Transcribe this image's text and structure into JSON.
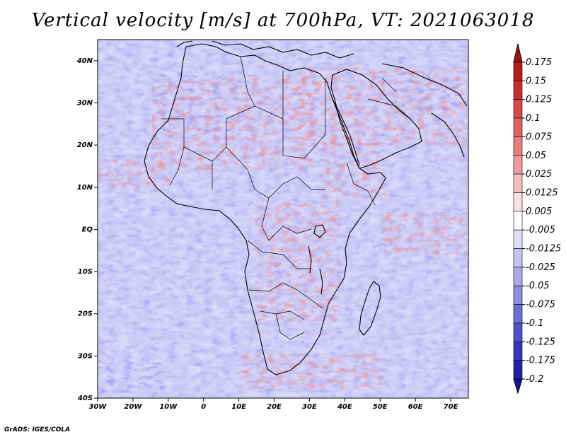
{
  "title": "Vertical velocity [m/s] at 700hPa, VT: 2021063018",
  "map": {
    "variable": "Vertical velocity",
    "units": "m/s",
    "level": "700hPa",
    "valid_time": "2021063018",
    "region": "Africa",
    "lon_range": [
      -30,
      75
    ],
    "lat_range": [
      -40,
      45
    ],
    "lat_labels": [
      "40N",
      "30N",
      "20N",
      "10N",
      "EQ",
      "10S",
      "20S",
      "30S",
      "40S"
    ],
    "lat_values": [
      40,
      30,
      20,
      10,
      0,
      -10,
      -20,
      -30,
      -40
    ],
    "lon_labels": [
      "30W",
      "20W",
      "10W",
      "0",
      "10E",
      "20E",
      "30E",
      "40E",
      "50E",
      "60E",
      "70E"
    ],
    "lon_values": [
      -30,
      -20,
      -10,
      0,
      10,
      20,
      30,
      40,
      50,
      60,
      70
    ]
  },
  "colorbar": {
    "levels": [
      "0.175",
      "0.15",
      "0.125",
      "0.1",
      "0.075",
      "0.05",
      "0.025",
      "0.0125",
      "0.005",
      "-0.005",
      "-0.0125",
      "-0.025",
      "-0.05",
      "-0.075",
      "-0.1",
      "-0.125",
      "-0.175",
      "-0.2"
    ],
    "colors": [
      "#a01010",
      "#b41c1c",
      "#c83030",
      "#d84848",
      "#e46060",
      "#ec7c7c",
      "#f29a9a",
      "#f7bcbc",
      "#fbdede",
      "#ffffff",
      "#dedef8",
      "#c4c4f2",
      "#a8a8ea",
      "#8c8ce2",
      "#6e6ed8",
      "#5050cc",
      "#3434bc",
      "#2020a8",
      "#14149a"
    ]
  },
  "credit": "GrADS: IGES/COLA"
}
